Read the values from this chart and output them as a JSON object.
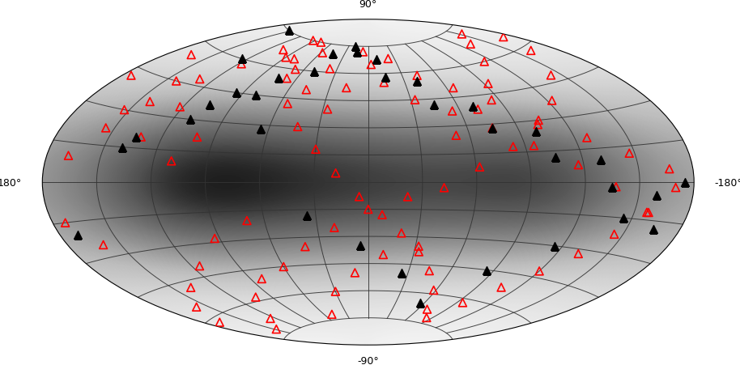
{
  "fig_width": 9.14,
  "fig_height": 4.52,
  "dpi": 100,
  "label_fontsize": 9,
  "marker_size": 50,
  "red_color": "#ff0000",
  "black_color": "#000000",
  "grid_color": "#333333",
  "grid_linewidth": 0.7,
  "grid_alpha": 0.9,
  "red_l_deg": [
    -170,
    -158,
    -148,
    -138,
    -125,
    -115,
    -103,
    -93,
    -82,
    -70,
    -60,
    -50,
    -40,
    -30,
    -20,
    -10,
    0,
    10,
    22,
    32,
    42,
    52,
    62,
    72,
    83,
    93,
    103,
    113,
    123,
    133,
    143,
    153,
    163,
    173,
    -175,
    -165,
    -153,
    -143,
    -132,
    -122,
    -110,
    -100,
    -90,
    -78,
    -68,
    -58,
    -47,
    -37,
    -27,
    -17,
    -7,
    3,
    13,
    23,
    33,
    43,
    55,
    65,
    75,
    85,
    95,
    105,
    117,
    127,
    137,
    147,
    157,
    167,
    -168,
    -155,
    -143,
    -130,
    -118,
    -105,
    -93,
    -80,
    -68,
    -55,
    -43,
    -30,
    -18,
    -5,
    8,
    20,
    33,
    45,
    58,
    70,
    83,
    95,
    108,
    120,
    133,
    145,
    158,
    170,
    -173,
    -160
  ],
  "red_b_deg": [
    -62,
    -55,
    -72,
    -48,
    -68,
    -40,
    -58,
    -28,
    -50,
    -20,
    -45,
    -72,
    -35,
    -60,
    -25,
    -50,
    -15,
    -40,
    -8,
    -35,
    -3,
    25,
    8,
    38,
    18,
    50,
    28,
    60,
    38,
    68,
    48,
    72,
    58,
    65,
    42,
    55,
    30,
    45,
    20,
    35,
    10,
    22,
    65,
    75,
    60,
    70,
    50,
    62,
    40,
    52,
    72,
    65,
    55,
    68,
    45,
    58,
    38,
    50,
    28,
    42,
    18,
    30,
    8,
    20,
    -2,
    12,
    -12,
    5,
    10,
    22,
    35,
    48,
    58,
    68,
    75,
    65,
    55,
    42,
    30,
    18,
    5,
    -8,
    -18,
    -28,
    -38,
    -48,
    -58,
    -68,
    -72,
    -62,
    -52,
    -42,
    -32,
    -22,
    -12,
    -2,
    -15,
    -25
  ],
  "black_l_deg": [
    -155,
    -125,
    -95,
    -65,
    -35,
    -5,
    25,
    55,
    85,
    115,
    145,
    175,
    -140,
    -110,
    -80,
    -50,
    -20,
    10,
    40,
    70,
    100,
    130,
    160,
    -170,
    -135,
    -105,
    -75,
    -45,
    -15,
    15,
    45,
    75,
    105,
    135,
    165
  ],
  "black_b_deg": [
    75,
    60,
    45,
    28,
    -18,
    -35,
    -50,
    -65,
    -45,
    -30,
    -15,
    0,
    15,
    30,
    45,
    60,
    75,
    68,
    55,
    40,
    25,
    10,
    -5,
    -20,
    20,
    38,
    55,
    70,
    72,
    58,
    42,
    28,
    12,
    -2,
    -18
  ]
}
